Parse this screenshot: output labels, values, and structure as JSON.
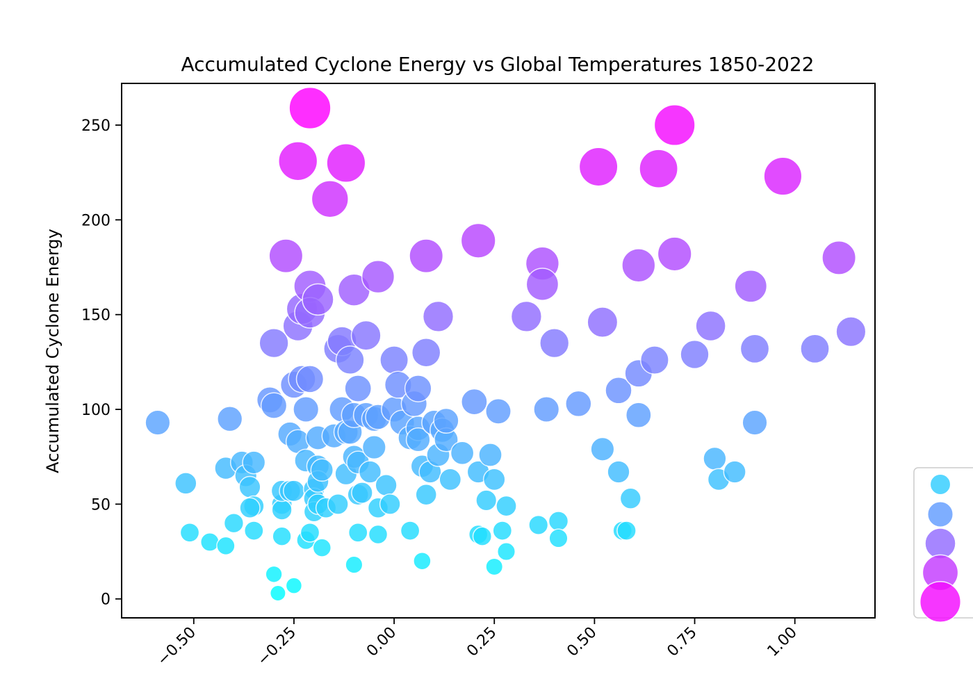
{
  "chart_data": {
    "type": "scatter",
    "title": "Accumulated Cyclone Energy vs Global Temperatures 1850-2022",
    "xlabel": "",
    "ylabel": "Accumulated Cyclone Energy",
    "xlim": [
      -0.68,
      1.2
    ],
    "ylim": [
      -10,
      272
    ],
    "x_ticks": [
      -0.5,
      -0.25,
      0.0,
      0.25,
      0.5,
      0.75,
      1.0
    ],
    "x_tick_labels": [
      "−0.50",
      "−0.25",
      "0.00",
      "0.25",
      "0.50",
      "0.75",
      "1.00"
    ],
    "y_ticks": [
      0,
      50,
      100,
      150,
      200,
      250
    ],
    "y_tick_labels": [
      "0",
      "50",
      "100",
      "150",
      "200",
      "250"
    ],
    "grid": false,
    "color_scale": {
      "low": "#00ffff",
      "high": "#ff00ff",
      "vmin": 0,
      "vmax": 260
    },
    "legend": {
      "placement": "lower-right, outside plot",
      "levels": [
        50,
        100,
        150,
        200,
        250
      ],
      "labels": []
    },
    "points": [
      {
        "x": -0.59,
        "y": 93
      },
      {
        "x": -0.52,
        "y": 61
      },
      {
        "x": -0.51,
        "y": 35
      },
      {
        "x": -0.46,
        "y": 30
      },
      {
        "x": -0.42,
        "y": 28
      },
      {
        "x": -0.42,
        "y": 69
      },
      {
        "x": -0.41,
        "y": 95
      },
      {
        "x": -0.4,
        "y": 40
      },
      {
        "x": -0.38,
        "y": 72
      },
      {
        "x": -0.37,
        "y": 65
      },
      {
        "x": -0.36,
        "y": 59
      },
      {
        "x": -0.35,
        "y": 72
      },
      {
        "x": -0.35,
        "y": 49
      },
      {
        "x": -0.36,
        "y": 48
      },
      {
        "x": -0.35,
        "y": 36
      },
      {
        "x": -0.3,
        "y": 135
      },
      {
        "x": -0.31,
        "y": 105
      },
      {
        "x": -0.3,
        "y": 102
      },
      {
        "x": -0.3,
        "y": 13
      },
      {
        "x": -0.29,
        "y": 3
      },
      {
        "x": -0.28,
        "y": 50
      },
      {
        "x": -0.28,
        "y": 47
      },
      {
        "x": -0.28,
        "y": 57
      },
      {
        "x": -0.28,
        "y": 33
      },
      {
        "x": -0.27,
        "y": 181
      },
      {
        "x": -0.26,
        "y": 57
      },
      {
        "x": -0.26,
        "y": 87
      },
      {
        "x": -0.25,
        "y": 113
      },
      {
        "x": -0.25,
        "y": 57
      },
      {
        "x": -0.25,
        "y": 7
      },
      {
        "x": -0.24,
        "y": 231
      },
      {
        "x": -0.24,
        "y": 83
      },
      {
        "x": -0.24,
        "y": 144
      },
      {
        "x": -0.23,
        "y": 153
      },
      {
        "x": -0.23,
        "y": 116
      },
      {
        "x": -0.22,
        "y": 100
      },
      {
        "x": -0.22,
        "y": 73
      },
      {
        "x": -0.22,
        "y": 31
      },
      {
        "x": -0.21,
        "y": 259
      },
      {
        "x": -0.21,
        "y": 165
      },
      {
        "x": -0.21,
        "y": 151
      },
      {
        "x": -0.21,
        "y": 116
      },
      {
        "x": -0.21,
        "y": 35
      },
      {
        "x": -0.2,
        "y": 58
      },
      {
        "x": -0.2,
        "y": 53
      },
      {
        "x": -0.2,
        "y": 46
      },
      {
        "x": -0.19,
        "y": 158
      },
      {
        "x": -0.19,
        "y": 85
      },
      {
        "x": -0.19,
        "y": 70
      },
      {
        "x": -0.19,
        "y": 62
      },
      {
        "x": -0.19,
        "y": 50
      },
      {
        "x": -0.18,
        "y": 68
      },
      {
        "x": -0.18,
        "y": 27
      },
      {
        "x": -0.17,
        "y": 48
      },
      {
        "x": -0.16,
        "y": 211
      },
      {
        "x": -0.15,
        "y": 86
      },
      {
        "x": -0.14,
        "y": 132
      },
      {
        "x": -0.14,
        "y": 50
      },
      {
        "x": -0.13,
        "y": 136
      },
      {
        "x": -0.13,
        "y": 100
      },
      {
        "x": -0.12,
        "y": 230
      },
      {
        "x": -0.12,
        "y": 88
      },
      {
        "x": -0.12,
        "y": 66
      },
      {
        "x": -0.11,
        "y": 126
      },
      {
        "x": -0.11,
        "y": 88
      },
      {
        "x": -0.1,
        "y": 163
      },
      {
        "x": -0.1,
        "y": 97
      },
      {
        "x": -0.1,
        "y": 75
      },
      {
        "x": -0.1,
        "y": 18
      },
      {
        "x": -0.09,
        "y": 111
      },
      {
        "x": -0.09,
        "y": 72
      },
      {
        "x": -0.09,
        "y": 55
      },
      {
        "x": -0.09,
        "y": 35
      },
      {
        "x": -0.08,
        "y": 56
      },
      {
        "x": -0.07,
        "y": 139
      },
      {
        "x": -0.07,
        "y": 97
      },
      {
        "x": -0.06,
        "y": 67
      },
      {
        "x": -0.05,
        "y": 95
      },
      {
        "x": -0.05,
        "y": 80
      },
      {
        "x": -0.04,
        "y": 170
      },
      {
        "x": -0.04,
        "y": 96
      },
      {
        "x": -0.04,
        "y": 48
      },
      {
        "x": -0.04,
        "y": 34
      },
      {
        "x": -0.02,
        "y": 60
      },
      {
        "x": -0.01,
        "y": 50
      },
      {
        "x": 0.0,
        "y": 126
      },
      {
        "x": 0.0,
        "y": 100
      },
      {
        "x": 0.01,
        "y": 113
      },
      {
        "x": 0.02,
        "y": 93
      },
      {
        "x": 0.04,
        "y": 85
      },
      {
        "x": 0.04,
        "y": 36
      },
      {
        "x": 0.05,
        "y": 103
      },
      {
        "x": 0.06,
        "y": 111
      },
      {
        "x": 0.06,
        "y": 90
      },
      {
        "x": 0.06,
        "y": 84
      },
      {
        "x": 0.07,
        "y": 70
      },
      {
        "x": 0.07,
        "y": 20
      },
      {
        "x": 0.08,
        "y": 181
      },
      {
        "x": 0.08,
        "y": 130
      },
      {
        "x": 0.08,
        "y": 55
      },
      {
        "x": 0.09,
        "y": 67
      },
      {
        "x": 0.1,
        "y": 93
      },
      {
        "x": 0.11,
        "y": 149
      },
      {
        "x": 0.11,
        "y": 76
      },
      {
        "x": 0.12,
        "y": 89
      },
      {
        "x": 0.13,
        "y": 84
      },
      {
        "x": 0.13,
        "y": 94
      },
      {
        "x": 0.14,
        "y": 63
      },
      {
        "x": 0.17,
        "y": 77
      },
      {
        "x": 0.2,
        "y": 104
      },
      {
        "x": 0.21,
        "y": 189
      },
      {
        "x": 0.21,
        "y": 67
      },
      {
        "x": 0.21,
        "y": 34
      },
      {
        "x": 0.22,
        "y": 33
      },
      {
        "x": 0.23,
        "y": 52
      },
      {
        "x": 0.24,
        "y": 76
      },
      {
        "x": 0.25,
        "y": 63
      },
      {
        "x": 0.25,
        "y": 17
      },
      {
        "x": 0.26,
        "y": 99
      },
      {
        "x": 0.27,
        "y": 36
      },
      {
        "x": 0.28,
        "y": 49
      },
      {
        "x": 0.28,
        "y": 25
      },
      {
        "x": 0.33,
        "y": 149
      },
      {
        "x": 0.36,
        "y": 39
      },
      {
        "x": 0.37,
        "y": 177
      },
      {
        "x": 0.37,
        "y": 166
      },
      {
        "x": 0.38,
        "y": 100
      },
      {
        "x": 0.4,
        "y": 135
      },
      {
        "x": 0.41,
        "y": 41
      },
      {
        "x": 0.41,
        "y": 32
      },
      {
        "x": 0.46,
        "y": 103
      },
      {
        "x": 0.51,
        "y": 228
      },
      {
        "x": 0.52,
        "y": 146
      },
      {
        "x": 0.52,
        "y": 79
      },
      {
        "x": 0.56,
        "y": 110
      },
      {
        "x": 0.56,
        "y": 67
      },
      {
        "x": 0.57,
        "y": 36
      },
      {
        "x": 0.58,
        "y": 36
      },
      {
        "x": 0.59,
        "y": 53
      },
      {
        "x": 0.61,
        "y": 176
      },
      {
        "x": 0.61,
        "y": 119
      },
      {
        "x": 0.61,
        "y": 97
      },
      {
        "x": 0.65,
        "y": 126
      },
      {
        "x": 0.66,
        "y": 227
      },
      {
        "x": 0.7,
        "y": 250
      },
      {
        "x": 0.7,
        "y": 182
      },
      {
        "x": 0.75,
        "y": 129
      },
      {
        "x": 0.79,
        "y": 144
      },
      {
        "x": 0.8,
        "y": 74
      },
      {
        "x": 0.81,
        "y": 63
      },
      {
        "x": 0.85,
        "y": 67
      },
      {
        "x": 0.89,
        "y": 165
      },
      {
        "x": 0.9,
        "y": 132
      },
      {
        "x": 0.9,
        "y": 93
      },
      {
        "x": 0.97,
        "y": 223
      },
      {
        "x": 1.05,
        "y": 132
      },
      {
        "x": 1.11,
        "y": 180
      },
      {
        "x": 1.14,
        "y": 141
      }
    ]
  }
}
